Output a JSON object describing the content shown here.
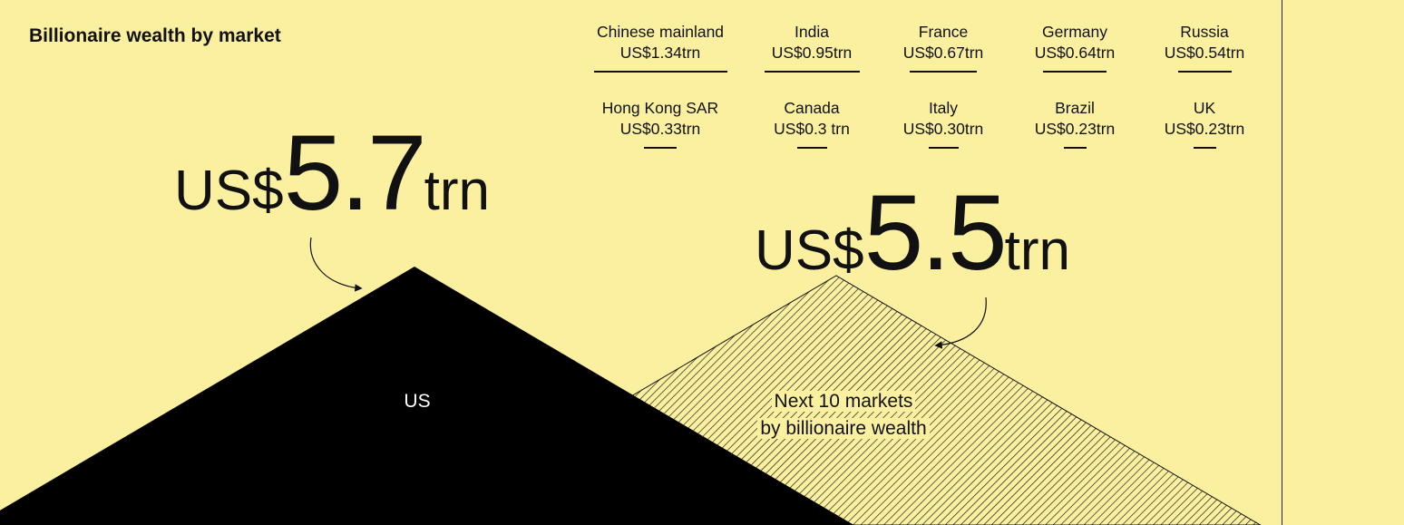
{
  "title": "Billionaire wealth by market",
  "colors": {
    "background": "#fbf0a0",
    "us_fill": "#000000",
    "hatch": "#111111"
  },
  "chart_data": {
    "type": "area",
    "unit": "US$ trillion",
    "series": [
      {
        "name": "US",
        "value": 5.7,
        "value_label": {
          "prefix": "US$",
          "number": "5.7",
          "suffix": "trn"
        }
      },
      {
        "name": "Next 10 markets by billionaire wealth",
        "value": 5.5,
        "label_lines": [
          "Next 10 markets",
          "by billionaire wealth"
        ],
        "value_label": {
          "prefix": "US$",
          "number": "5.5",
          "suffix": "trn"
        }
      }
    ],
    "markets": [
      {
        "name": "Chinese mainland",
        "label": "US$1.34trn",
        "value": 1.34
      },
      {
        "name": "India",
        "label": "US$0.95trn",
        "value": 0.95
      },
      {
        "name": "France",
        "label": "US$0.67trn",
        "value": 0.67
      },
      {
        "name": "Germany",
        "label": "US$0.64trn",
        "value": 0.64
      },
      {
        "name": "Russia",
        "label": "US$0.54trn",
        "value": 0.54
      },
      {
        "name": "Hong Kong SAR",
        "label": "US$0.33trn",
        "value": 0.33
      },
      {
        "name": "Canada",
        "label": "US$0.3 trn",
        "value": 0.3
      },
      {
        "name": "Italy",
        "label": "US$0.30trn",
        "value": 0.3
      },
      {
        "name": "Brazil",
        "label": "US$0.23trn",
        "value": 0.23
      },
      {
        "name": "UK",
        "label": "US$0.23trn",
        "value": 0.23
      }
    ]
  }
}
